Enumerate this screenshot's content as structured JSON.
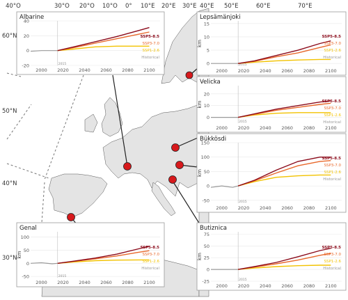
{
  "map": {
    "lon_labels": [
      "40°O",
      "30°O",
      "20°O",
      "10°O",
      "0°",
      "10°E",
      "20°E",
      "30°E",
      "40°E",
      "50°E",
      "60°E",
      "70°E"
    ],
    "lat_labels": [
      "60°N",
      "50°N",
      "40°N",
      "30°N"
    ],
    "colors": {
      "sea": "#ffffff",
      "land": "#e4e4e4",
      "coast": "#555555",
      "marker": "#d7191c",
      "leader": "#222222",
      "dashed": "#777777"
    }
  },
  "styles": {
    "historical_color": "#999999",
    "ssp585_color": "#8b0a1a",
    "ssp370_color": "#e8672a",
    "ssp126_color": "#f2c200",
    "start_year_color": "#888888"
  },
  "chart_data": [
    {
      "type": "line",
      "title": "Albarine",
      "ylabel": "",
      "xlim": [
        1990,
        2110
      ],
      "ylim": [
        -20,
        40
      ],
      "xticks": [
        2000,
        2020,
        2040,
        2060,
        2080,
        2100
      ],
      "yticks": [
        -20,
        0,
        20,
        40
      ],
      "start_year": "2015",
      "series": [
        {
          "name": "Historical",
          "x": [
            1990,
            2000,
            2010,
            2015
          ],
          "values": [
            -1,
            0,
            0,
            0
          ]
        },
        {
          "name": "SSP5-8.5",
          "x": [
            2015,
            2030,
            2050,
            2070,
            2090,
            2100
          ],
          "values": [
            0,
            5,
            12,
            19,
            27,
            31
          ]
        },
        {
          "name": "SSP3-7.0",
          "x": [
            2015,
            2030,
            2050,
            2070,
            2090,
            2100
          ],
          "values": [
            0,
            4,
            10,
            16,
            22,
            25
          ]
        },
        {
          "name": "SSP1-2.6",
          "x": [
            2015,
            2030,
            2050,
            2070,
            2090,
            2100
          ],
          "values": [
            0,
            2,
            5,
            6,
            6,
            6
          ]
        }
      ]
    },
    {
      "type": "line",
      "title": "Lepsämänjoki",
      "ylabel": "km",
      "xlim": [
        1990,
        2110
      ],
      "ylim": [
        -1,
        16
      ],
      "xticks": [
        2000,
        2020,
        2040,
        2060,
        2080,
        2100
      ],
      "yticks": [
        0,
        5,
        10,
        15
      ],
      "start_year": "2015",
      "series": [
        {
          "name": "Historical",
          "x": [
            1990,
            2000,
            2010,
            2015
          ],
          "values": [
            0,
            0,
            0,
            0
          ]
        },
        {
          "name": "SSP5-8.5",
          "x": [
            2015,
            2030,
            2050,
            2070,
            2090,
            2100
          ],
          "values": [
            0,
            1,
            3,
            5,
            7.5,
            8.5
          ]
        },
        {
          "name": "SSP3-7.0",
          "x": [
            2015,
            2030,
            2050,
            2070,
            2090,
            2100
          ],
          "values": [
            0,
            0.8,
            2.5,
            4,
            6,
            7
          ]
        },
        {
          "name": "SSP1-2.6",
          "x": [
            2015,
            2030,
            2050,
            2070,
            2090,
            2100
          ],
          "values": [
            0,
            0.5,
            1,
            1.3,
            1.5,
            1.5
          ]
        }
      ]
    },
    {
      "type": "line",
      "title": "Velicka",
      "ylabel": "km",
      "xlim": [
        1990,
        2110
      ],
      "ylim": [
        -5,
        27
      ],
      "xticks": [
        2000,
        2020,
        2040,
        2060,
        2080,
        2100
      ],
      "yticks": [
        0,
        10,
        20
      ],
      "start_year": "2015",
      "series": [
        {
          "name": "Historical",
          "x": [
            1990,
            2000,
            2010,
            2015
          ],
          "values": [
            0,
            0,
            0,
            0
          ]
        },
        {
          "name": "SSP5-8.5",
          "x": [
            2015,
            2030,
            2050,
            2070,
            2090,
            2100
          ],
          "values": [
            0,
            3,
            7,
            10,
            13,
            14
          ]
        },
        {
          "name": "SSP3-7.0",
          "x": [
            2015,
            2030,
            2050,
            2070,
            2090,
            2100
          ],
          "values": [
            0,
            2.5,
            6,
            8.5,
            11,
            12
          ]
        },
        {
          "name": "SSP1-2.6",
          "x": [
            2015,
            2030,
            2050,
            2070,
            2090,
            2100
          ],
          "values": [
            0,
            2,
            3.5,
            4,
            4,
            4
          ]
        }
      ]
    },
    {
      "type": "line",
      "title": "Bükkösdi",
      "ylabel": "km",
      "xlim": [
        1990,
        2110
      ],
      "ylim": [
        -60,
        150
      ],
      "xticks": [
        2000,
        2020,
        2040,
        2060,
        2080,
        2100
      ],
      "yticks": [
        -50,
        0,
        50,
        100,
        150
      ],
      "start_year": "2015",
      "series": [
        {
          "name": "Historical",
          "x": [
            1990,
            2000,
            2010,
            2015
          ],
          "values": [
            -5,
            0,
            -5,
            0
          ]
        },
        {
          "name": "SSP5-8.5",
          "x": [
            2015,
            2030,
            2050,
            2070,
            2090,
            2100
          ],
          "values": [
            0,
            20,
            55,
            85,
            100,
            100
          ]
        },
        {
          "name": "SSP3-7.0",
          "x": [
            2015,
            2030,
            2050,
            2070,
            2090,
            2100
          ],
          "values": [
            0,
            18,
            45,
            70,
            85,
            88
          ]
        },
        {
          "name": "SSP1-2.6",
          "x": [
            2015,
            2030,
            2050,
            2070,
            2090,
            2100
          ],
          "values": [
            0,
            15,
            30,
            35,
            38,
            38
          ]
        }
      ]
    },
    {
      "type": "line",
      "title": "Genal",
      "ylabel": "km",
      "xlim": [
        1990,
        2110
      ],
      "ylim": [
        -55,
        120
      ],
      "xticks": [
        2000,
        2020,
        2040,
        2060,
        2080,
        2100
      ],
      "yticks": [
        -50,
        0,
        50,
        100
      ],
      "start_year": "2015",
      "series": [
        {
          "name": "Historical",
          "x": [
            1990,
            2000,
            2010,
            2015
          ],
          "values": [
            0,
            2,
            -2,
            0
          ]
        },
        {
          "name": "SSP5-8.5",
          "x": [
            2015,
            2030,
            2050,
            2070,
            2090,
            2100
          ],
          "values": [
            0,
            8,
            20,
            35,
            55,
            65
          ]
        },
        {
          "name": "SSP3-7.0",
          "x": [
            2015,
            2030,
            2050,
            2070,
            2090,
            2100
          ],
          "values": [
            0,
            7,
            17,
            28,
            42,
            48
          ]
        },
        {
          "name": "SSP1-2.6",
          "x": [
            2015,
            2030,
            2050,
            2070,
            2090,
            2100
          ],
          "values": [
            0,
            5,
            10,
            12,
            13,
            13
          ]
        }
      ]
    },
    {
      "type": "line",
      "title": "Butiznica",
      "ylabel": "km",
      "xlim": [
        1990,
        2110
      ],
      "ylim": [
        -25,
        80
      ],
      "xticks": [
        2000,
        2020,
        2040,
        2060,
        2080,
        2100
      ],
      "yticks": [
        -25,
        0,
        25,
        50,
        75
      ],
      "start_year": "2015",
      "series": [
        {
          "name": "Historical",
          "x": [
            1990,
            2000,
            2010,
            2015
          ],
          "values": [
            0,
            0,
            0,
            0
          ]
        },
        {
          "name": "SSP5-8.5",
          "x": [
            2015,
            2030,
            2050,
            2070,
            2090,
            2100
          ],
          "values": [
            0,
            6,
            15,
            27,
            40,
            45
          ]
        },
        {
          "name": "SSP3-7.0",
          "x": [
            2015,
            2030,
            2050,
            2070,
            2090,
            2100
          ],
          "values": [
            0,
            5,
            12,
            20,
            30,
            34
          ]
        },
        {
          "name": "SSP1-2.6",
          "x": [
            2015,
            2030,
            2050,
            2070,
            2090,
            2100
          ],
          "values": [
            0,
            3,
            6,
            8,
            9,
            9
          ]
        }
      ]
    }
  ]
}
